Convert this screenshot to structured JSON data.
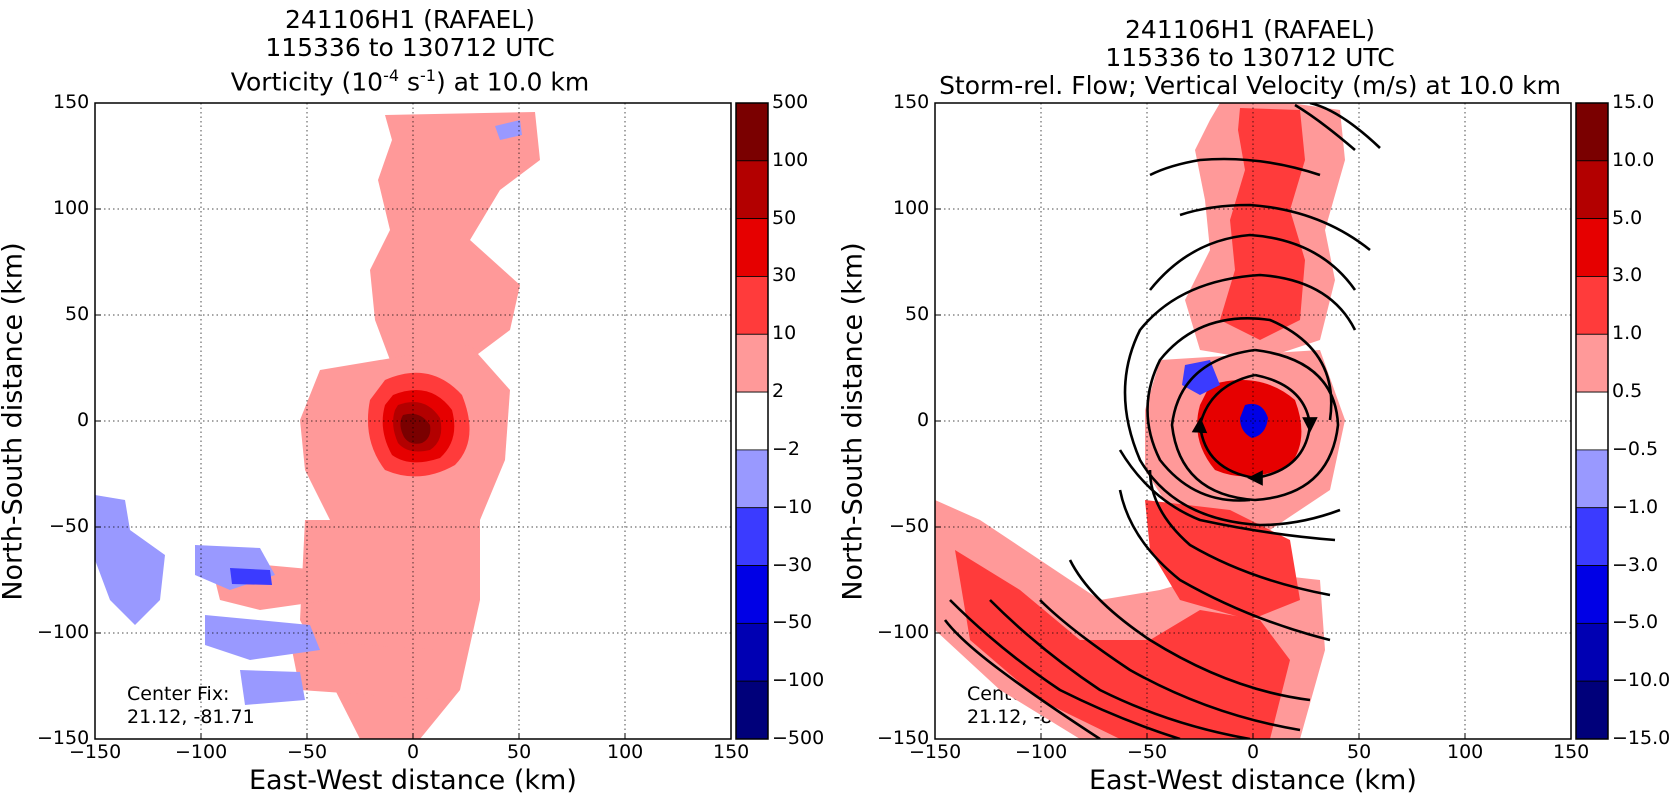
{
  "chart_data": [
    {
      "type": "heatmap",
      "title_lines": [
        "241106H1 (RAFAEL)",
        "115336 to 130712 UTC"
      ],
      "title_var": "Vorticity (10",
      "title_exp1": "-4",
      "title_mid": " s",
      "title_exp2": "-1",
      "title_end": ") at 10.0 km",
      "xlabel": "East-West distance (km)",
      "ylabel": "North-South distance (km)",
      "xlim": [
        -150,
        150
      ],
      "ylim": [
        -150,
        150
      ],
      "x_ticks": [
        "−150",
        "−100",
        "−50",
        "0",
        "50",
        "100",
        "150"
      ],
      "y_ticks": [
        "150",
        "100",
        "50",
        "0",
        "−50",
        "−100",
        "−150"
      ],
      "grid": true,
      "colorbar": {
        "labels": [
          "500",
          "100",
          "50",
          "30",
          "10",
          "2",
          "−2",
          "−10",
          "−30",
          "−50",
          "−100",
          "−500"
        ],
        "colors": [
          "#7a0000",
          "#b30000",
          "#e60000",
          "#ff3b3b",
          "#ff9999",
          "#ffffff",
          "#9999ff",
          "#3b3bff",
          "#0000e6",
          "#0000b3",
          "#00007a"
        ]
      },
      "annotation": [
        "Center Fix:",
        "21.12, -81.71"
      ],
      "features": [
        {
          "kind": "vortex_core",
          "x": 5,
          "y": 0,
          "level_max": "100",
          "color": "#b30000"
        },
        {
          "kind": "positive_band",
          "x_range": [
            -50,
            50
          ],
          "y_range": [
            -150,
            150
          ],
          "color": "#ff9999"
        },
        {
          "kind": "negative_patches",
          "x_range": [
            -150,
            40
          ],
          "y_range": [
            -150,
            -40
          ],
          "color": "#9999ff"
        }
      ]
    },
    {
      "type": "heatmap",
      "title_lines": [
        "241106H1 (RAFAEL)",
        "115336 to 130712 UTC",
        "Storm-rel. Flow; Vertical Velocity (m/s) at 10.0 km"
      ],
      "xlabel": "East-West distance (km)",
      "ylabel": "North-South distance (km)",
      "xlim": [
        -150,
        150
      ],
      "ylim": [
        -150,
        150
      ],
      "x_ticks": [
        "−150",
        "−100",
        "−50",
        "0",
        "50",
        "100",
        "150"
      ],
      "y_ticks": [
        "150",
        "100",
        "50",
        "0",
        "−50",
        "−100",
        "−150"
      ],
      "grid": true,
      "colorbar": {
        "labels": [
          "15.0",
          "10.0",
          "5.0",
          "3.0",
          "1.0",
          "0.5",
          "−0.5",
          "−1.0",
          "−3.0",
          "−5.0",
          "−10.0",
          "−15.0"
        ],
        "colors": [
          "#7a0000",
          "#b30000",
          "#e60000",
          "#ff3b3b",
          "#ff9999",
          "#ffffff",
          "#9999ff",
          "#3b3bff",
          "#0000e6",
          "#0000b3",
          "#00007a"
        ]
      },
      "annotation": [
        "Center Fix:",
        "21.12, -81.71"
      ],
      "features": [
        {
          "kind": "updraft_ring",
          "x": 8,
          "y": 0,
          "color": "#e60000"
        },
        {
          "kind": "downdraft_eye",
          "x": 8,
          "y": 2,
          "color": "#0000e6"
        },
        {
          "kind": "streamlines",
          "pattern": "cyclonic circulation around center, flow from southeast band",
          "color": "#000000"
        }
      ]
    }
  ]
}
